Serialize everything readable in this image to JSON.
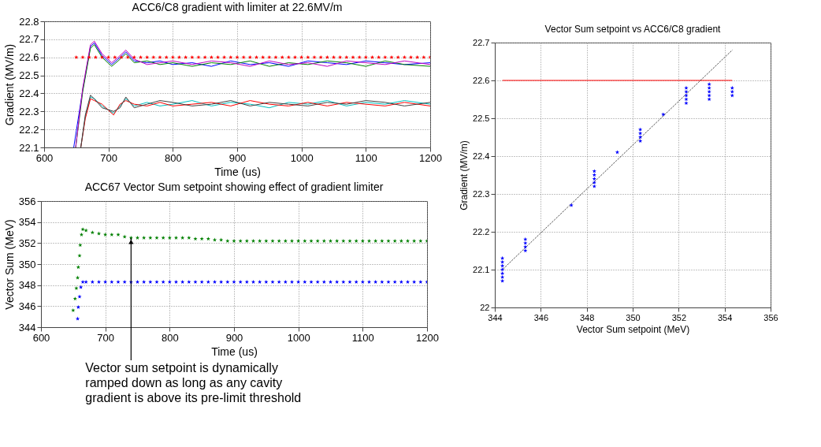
{
  "chart_data": [
    {
      "type": "line",
      "title": "ACC6/C8 gradient with limiter at 22.6MV/m",
      "xlabel": "Time (us)",
      "ylabel": "Gradient (MV/m)",
      "xlim": [
        600,
        1200
      ],
      "xticks": [
        600,
        700,
        800,
        900,
        1000,
        1100,
        1200
      ],
      "ylim": [
        22.1,
        22.8
      ],
      "yticks": [
        22.1,
        22.2,
        22.3,
        22.4,
        22.5,
        22.6,
        22.7,
        22.8
      ],
      "grid": true,
      "series": [
        {
          "color": "#0000ff",
          "x": [
            646,
            660,
            672,
            678,
            690,
            705,
            715,
            727,
            740,
            760,
            780,
            800,
            830,
            860,
            890,
            920,
            950,
            980,
            1010,
            1040,
            1070,
            1100,
            1130,
            1160,
            1200
          ],
          "values": [
            22.1,
            22.42,
            22.66,
            22.68,
            22.61,
            22.56,
            22.59,
            22.63,
            22.58,
            22.57,
            22.58,
            22.56,
            22.57,
            22.55,
            22.58,
            22.56,
            22.57,
            22.55,
            22.58,
            22.57,
            22.56,
            22.58,
            22.57,
            22.56,
            22.57
          ]
        },
        {
          "color": "#008000",
          "x": [
            649,
            660,
            672,
            678,
            690,
            705,
            715,
            727,
            740,
            760,
            780,
            800,
            830,
            860,
            890,
            920,
            950,
            980,
            1010,
            1040,
            1070,
            1100,
            1130,
            1160,
            1200
          ],
          "values": [
            22.1,
            22.41,
            22.65,
            22.67,
            22.6,
            22.55,
            22.58,
            22.62,
            22.57,
            22.58,
            22.56,
            22.57,
            22.55,
            22.57,
            22.56,
            22.58,
            22.55,
            22.57,
            22.56,
            22.58,
            22.57,
            22.55,
            22.58,
            22.56,
            22.55
          ]
        },
        {
          "color": "#bf00bf",
          "x": [
            649,
            660,
            672,
            678,
            690,
            705,
            715,
            727,
            740,
            760,
            780,
            800,
            830,
            860,
            890,
            920,
            950,
            980,
            1010,
            1040,
            1070,
            1100,
            1130,
            1160,
            1200
          ],
          "values": [
            22.1,
            22.43,
            22.67,
            22.69,
            22.62,
            22.57,
            22.6,
            22.64,
            22.59,
            22.56,
            22.57,
            22.58,
            22.56,
            22.58,
            22.57,
            22.55,
            22.58,
            22.56,
            22.57,
            22.55,
            22.58,
            22.57,
            22.56,
            22.58,
            22.56
          ]
        },
        {
          "color": "#00bfbf",
          "x": [
            657,
            664,
            672,
            678,
            690,
            708,
            718,
            727,
            740,
            760,
            780,
            800,
            830,
            860,
            890,
            920,
            950,
            980,
            1010,
            1040,
            1070,
            1100,
            1130,
            1160,
            1200
          ],
          "values": [
            22.1,
            22.27,
            22.38,
            22.37,
            22.33,
            22.29,
            22.33,
            22.37,
            22.33,
            22.35,
            22.33,
            22.34,
            22.36,
            22.33,
            22.35,
            22.34,
            22.32,
            22.35,
            22.34,
            22.36,
            22.33,
            22.35,
            22.34,
            22.36,
            22.34
          ]
        },
        {
          "color": "#ff0000",
          "x": [
            657,
            664,
            672,
            678,
            690,
            708,
            718,
            727,
            740,
            760,
            780,
            800,
            830,
            860,
            890,
            920,
            950,
            980,
            1010,
            1040,
            1070,
            1100,
            1130,
            1160,
            1200
          ],
          "values": [
            22.1,
            22.26,
            22.37,
            22.36,
            22.34,
            22.28,
            22.34,
            22.36,
            22.34,
            22.33,
            22.35,
            22.33,
            22.34,
            22.35,
            22.33,
            22.36,
            22.34,
            22.33,
            22.35,
            22.33,
            22.35,
            22.34,
            22.33,
            22.35,
            22.33
          ]
        },
        {
          "color": "#404040",
          "x": [
            657,
            664,
            672,
            678,
            690,
            708,
            718,
            727,
            740,
            760,
            780,
            800,
            830,
            860,
            890,
            920,
            950,
            980,
            1010,
            1040,
            1070,
            1100,
            1130,
            1160,
            1200
          ],
          "values": [
            22.1,
            22.28,
            22.39,
            22.37,
            22.32,
            22.3,
            22.32,
            22.38,
            22.32,
            22.34,
            22.36,
            22.35,
            22.33,
            22.34,
            22.36,
            22.33,
            22.35,
            22.34,
            22.33,
            22.35,
            22.34,
            22.36,
            22.35,
            22.33,
            22.35
          ]
        },
        {
          "type": "scatter",
          "marker": "star",
          "color": "#ff0000",
          "x": [
            650,
            660,
            670,
            680,
            690,
            700,
            710,
            720,
            730,
            740,
            750,
            760,
            770,
            780,
            790,
            800,
            810,
            820,
            830,
            840,
            850,
            860,
            870,
            880,
            890,
            900,
            910,
            920,
            930,
            940,
            950,
            960,
            970,
            980,
            990,
            1000,
            1010,
            1020,
            1030,
            1040,
            1050,
            1060,
            1070,
            1080,
            1090,
            1100,
            1110,
            1120,
            1130,
            1140,
            1150,
            1160,
            1170,
            1180,
            1190,
            1200
          ],
          "values": [
            22.6,
            22.6,
            22.6,
            22.6,
            22.6,
            22.6,
            22.6,
            22.6,
            22.6,
            22.6,
            22.6,
            22.6,
            22.6,
            22.6,
            22.6,
            22.6,
            22.6,
            22.6,
            22.6,
            22.6,
            22.6,
            22.6,
            22.6,
            22.6,
            22.6,
            22.6,
            22.6,
            22.6,
            22.6,
            22.6,
            22.6,
            22.6,
            22.6,
            22.6,
            22.6,
            22.6,
            22.6,
            22.6,
            22.6,
            22.6,
            22.6,
            22.6,
            22.6,
            22.6,
            22.6,
            22.6,
            22.6,
            22.6,
            22.6,
            22.6,
            22.6,
            22.6,
            22.6,
            22.6,
            22.6,
            22.6
          ]
        }
      ]
    },
    {
      "type": "scatter",
      "title": "ACC67 Vector Sum setpoint showing effect of gradient limiter",
      "xlabel": "Time (us)",
      "ylabel": "Vector Sum (MeV)",
      "xlim": [
        600,
        1200
      ],
      "xticks": [
        600,
        700,
        800,
        900,
        1000,
        1100,
        1200
      ],
      "ylim": [
        344,
        356
      ],
      "yticks": [
        344,
        346,
        348,
        350,
        352,
        354,
        356
      ],
      "grid": true,
      "marker": "star",
      "annotations": [
        {
          "text": "Vector sum setpoint is dynamically\nramped down as long as any cavity\ngradient is above its pre-limit threshold",
          "x": 740,
          "y": 352.5
        }
      ],
      "series": [
        {
          "color": "#008000",
          "x": [
            650,
            653,
            655,
            657,
            658,
            660,
            661,
            663,
            665,
            670,
            680,
            690,
            700,
            710,
            720,
            730,
            740,
            750,
            760,
            770,
            780,
            790,
            800,
            810,
            820,
            830,
            840,
            850,
            860,
            870,
            880,
            890,
            900,
            910,
            920,
            930,
            940,
            950,
            960,
            970,
            980,
            990,
            1000,
            1010,
            1020,
            1030,
            1040,
            1050,
            1060,
            1070,
            1080,
            1090,
            1100,
            1110,
            1120,
            1130,
            1140,
            1150,
            1160,
            1170,
            1180,
            1190,
            1200
          ],
          "values": [
            345.6,
            346.7,
            347.7,
            348.7,
            349.7,
            350.8,
            351.8,
            352.8,
            353.3,
            353.2,
            353.0,
            352.9,
            352.8,
            352.8,
            352.8,
            352.6,
            352.5,
            352.5,
            352.5,
            352.5,
            352.5,
            352.5,
            352.5,
            352.5,
            352.5,
            352.5,
            352.4,
            352.4,
            352.4,
            352.3,
            352.3,
            352.2,
            352.2,
            352.2,
            352.2,
            352.2,
            352.2,
            352.2,
            352.2,
            352.2,
            352.2,
            352.2,
            352.2,
            352.2,
            352.2,
            352.2,
            352.2,
            352.2,
            352.2,
            352.2,
            352.2,
            352.2,
            352.2,
            352.2,
            352.2,
            352.2,
            352.2,
            352.2,
            352.2,
            352.2,
            352.2,
            352.2,
            352.2
          ]
        },
        {
          "color": "#0000ff",
          "x": [
            657,
            658,
            660,
            662,
            665,
            670,
            680,
            690,
            700,
            710,
            720,
            730,
            740,
            750,
            760,
            770,
            780,
            790,
            800,
            810,
            820,
            830,
            840,
            850,
            860,
            870,
            880,
            890,
            900,
            910,
            920,
            930,
            940,
            950,
            960,
            970,
            980,
            990,
            1000,
            1010,
            1020,
            1030,
            1040,
            1050,
            1060,
            1070,
            1080,
            1090,
            1100,
            1110,
            1120,
            1130,
            1140,
            1150,
            1160,
            1170,
            1180,
            1190,
            1200
          ],
          "values": [
            344.8,
            345.9,
            346.9,
            347.8,
            348.3,
            348.3,
            348.3,
            348.3,
            348.3,
            348.3,
            348.3,
            348.3,
            348.3,
            348.3,
            348.3,
            348.3,
            348.3,
            348.3,
            348.3,
            348.3,
            348.3,
            348.3,
            348.3,
            348.3,
            348.3,
            348.3,
            348.3,
            348.3,
            348.3,
            348.3,
            348.3,
            348.3,
            348.3,
            348.3,
            348.3,
            348.3,
            348.3,
            348.3,
            348.3,
            348.3,
            348.3,
            348.3,
            348.3,
            348.3,
            348.3,
            348.3,
            348.3,
            348.3,
            348.3,
            348.3,
            348.3,
            348.3,
            348.3,
            348.3,
            348.3,
            348.3,
            348.3,
            348.3,
            348.3
          ]
        }
      ]
    },
    {
      "type": "scatter",
      "title": "Vector Sum setpoint vs ACC6/C8 gradient",
      "xlabel": "Vector Sum setpoint (MeV)",
      "ylabel": "Gradient (MV/m)",
      "xlim": [
        344,
        356
      ],
      "xticks": [
        344,
        346,
        348,
        350,
        352,
        354,
        356
      ],
      "ylim": [
        22,
        22.7
      ],
      "yticks": [
        22,
        22.1,
        22.2,
        22.3,
        22.4,
        22.5,
        22.6,
        22.7
      ],
      "grid": true,
      "series": [
        {
          "type": "line",
          "color": "#ff0000",
          "x": [
            344.33,
            354.33
          ],
          "values": [
            22.6,
            22.6
          ]
        },
        {
          "type": "line",
          "color": "#000000",
          "line_style": "dotted",
          "x": [
            344.33,
            354.33
          ],
          "values": [
            22.1,
            22.68
          ]
        },
        {
          "marker": "star",
          "color": "#0000ff",
          "x": [
            344.33,
            344.33,
            344.33,
            344.33,
            344.33,
            344.33,
            344.33,
            345.33,
            345.33,
            345.33,
            345.33,
            347.33,
            348.33,
            348.33,
            348.33,
            348.33,
            348.33,
            349.33,
            350.33,
            350.33,
            350.33,
            350.33,
            351.33,
            352.33,
            352.33,
            352.33,
            352.33,
            352.33,
            353.33,
            353.33,
            353.33,
            353.33,
            353.33,
            354.33,
            354.33,
            354.33
          ],
          "values": [
            22.07,
            22.08,
            22.09,
            22.1,
            22.11,
            22.12,
            22.13,
            22.15,
            22.16,
            22.17,
            22.18,
            22.27,
            22.32,
            22.33,
            22.34,
            22.35,
            22.36,
            22.41,
            22.44,
            22.45,
            22.46,
            22.47,
            22.51,
            22.54,
            22.55,
            22.56,
            22.57,
            22.58,
            22.55,
            22.56,
            22.57,
            22.58,
            22.59,
            22.56,
            22.57,
            22.58
          ]
        }
      ]
    }
  ]
}
